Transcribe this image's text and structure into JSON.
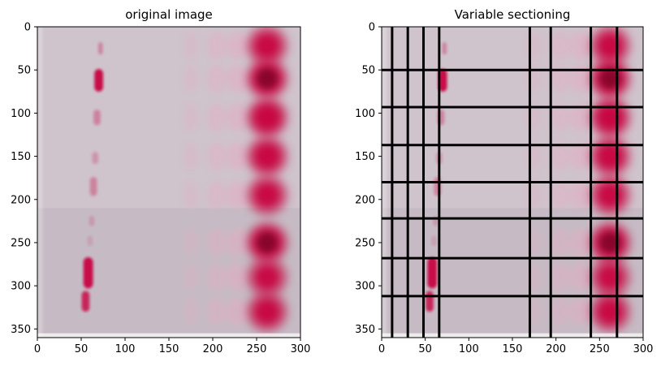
{
  "chart_data": [
    {
      "type": "image",
      "title": "original image",
      "xlim": [
        0,
        300
      ],
      "ylim": [
        360,
        0
      ],
      "x_ticks": [
        0,
        50,
        100,
        150,
        200,
        250,
        300
      ],
      "y_ticks": [
        0,
        50,
        100,
        150,
        200,
        250,
        300,
        350
      ],
      "grid_lines": null
    },
    {
      "type": "image",
      "title": "Variable sectioning",
      "xlim": [
        0,
        300
      ],
      "ylim": [
        360,
        0
      ],
      "x_ticks": [
        0,
        50,
        100,
        150,
        200,
        250,
        300
      ],
      "y_ticks": [
        0,
        50,
        100,
        150,
        200,
        250,
        300,
        350
      ],
      "grid_lines": {
        "vertical_x": [
          12,
          30,
          48,
          66,
          170,
          194,
          240,
          270
        ],
        "horizontal_y": [
          50,
          93,
          137,
          180,
          222,
          268,
          312
        ]
      }
    }
  ],
  "image_content": {
    "background_color": "#cfc3cc",
    "lower_background_color": "#c0b6be",
    "lane_colors": {
      "left_spot": "#c8104a",
      "middle_band": "#e8a8c0",
      "right_spot": "#c8003c",
      "right_spot_dark": "#7a0020"
    },
    "left_lane_spots": [
      {
        "x": 72,
        "y": 25,
        "h": 14,
        "w": 5,
        "intensity": 0.35
      },
      {
        "x": 70,
        "y": 62,
        "h": 26,
        "w": 10,
        "intensity": 1.0
      },
      {
        "x": 68,
        "y": 105,
        "h": 18,
        "w": 8,
        "intensity": 0.35
      },
      {
        "x": 66,
        "y": 152,
        "h": 14,
        "w": 7,
        "intensity": 0.25
      },
      {
        "x": 64,
        "y": 185,
        "h": 22,
        "w": 8,
        "intensity": 0.35
      },
      {
        "x": 62,
        "y": 225,
        "h": 12,
        "w": 6,
        "intensity": 0.2
      },
      {
        "x": 60,
        "y": 248,
        "h": 12,
        "w": 6,
        "intensity": 0.15
      },
      {
        "x": 58,
        "y": 285,
        "h": 36,
        "w": 11,
        "intensity": 1.0
      },
      {
        "x": 55,
        "y": 318,
        "h": 24,
        "w": 9,
        "intensity": 0.85
      }
    ],
    "right_lane_spots": [
      {
        "y": 22,
        "intensity": 0.85
      },
      {
        "y": 60,
        "intensity": 1.0
      },
      {
        "y": 105,
        "intensity": 0.95
      },
      {
        "y": 150,
        "intensity": 0.9
      },
      {
        "y": 195,
        "intensity": 0.85
      },
      {
        "y": 250,
        "intensity": 1.0
      },
      {
        "y": 290,
        "intensity": 0.8
      },
      {
        "y": 330,
        "intensity": 0.85
      }
    ],
    "middle_bands_y": [
      22,
      60,
      105,
      150,
      195,
      250,
      290,
      330
    ]
  }
}
